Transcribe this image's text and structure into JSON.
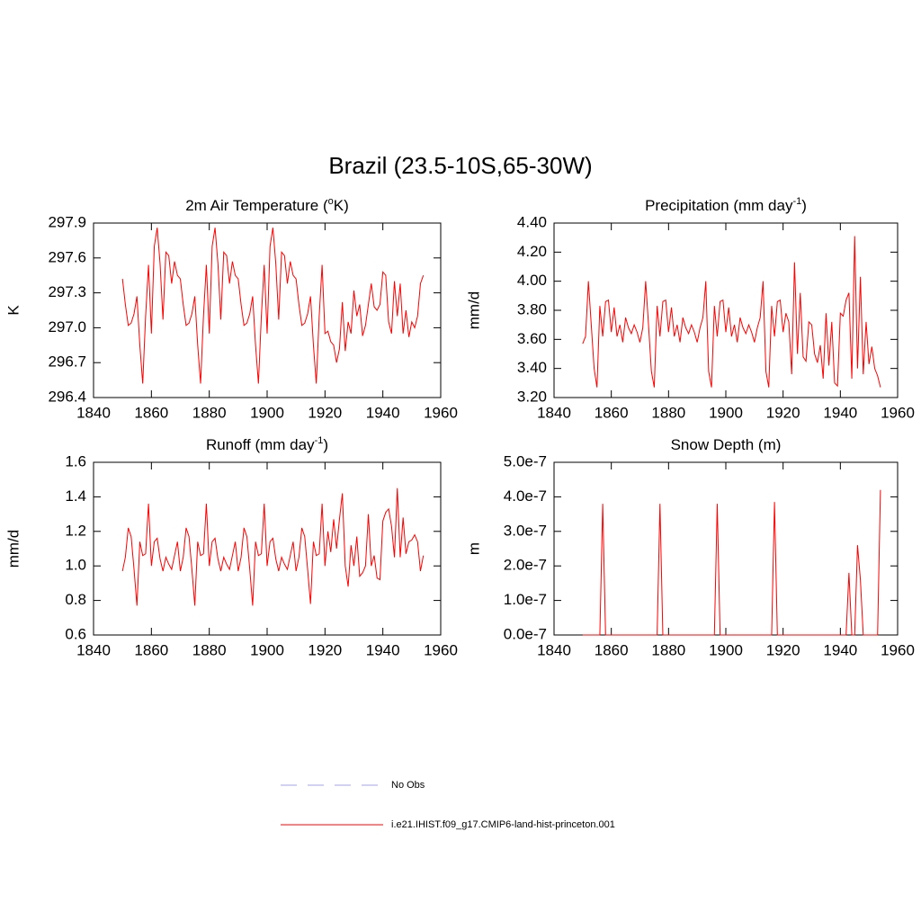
{
  "title": "Brazil (23.5-10S,65-30W)",
  "legend": [
    {
      "label": "No Obs",
      "color": "#a0a0f0",
      "dash": true
    },
    {
      "label": "i.e21.IHIST.f09_g17.CMIP6-land-hist-princeton.001",
      "color": "#ff0000",
      "dash": false
    }
  ],
  "chart_data": [
    {
      "type": "line",
      "title": "2m Air Temperature (",
      "title_sup": "o",
      "title_end": "K)",
      "ylabel": "K",
      "xlim": [
        1840,
        1960
      ],
      "xticks": [
        1840,
        1860,
        1880,
        1900,
        1920,
        1940,
        1960
      ],
      "ylim": [
        296.4,
        297.9
      ],
      "yticks": [
        296.4,
        296.7,
        {
          "value": 297,
          "label": "297.0"
        },
        297.3,
        297.6,
        297.9
      ],
      "x": [
        1850,
        1851,
        1852,
        1853,
        1854,
        1855,
        1856,
        1857,
        1858,
        1859,
        1860,
        1861,
        1862,
        1863,
        1864,
        1865,
        1866,
        1867,
        1868,
        1869,
        1870,
        1871,
        1872,
        1873,
        1874,
        1875,
        1876,
        1877,
        1878,
        1879,
        1880,
        1881,
        1882,
        1883,
        1884,
        1885,
        1886,
        1887,
        1888,
        1889,
        1890,
        1891,
        1892,
        1893,
        1894,
        1895,
        1896,
        1897,
        1898,
        1899,
        1900,
        1901,
        1902,
        1903,
        1904,
        1905,
        1906,
        1907,
        1908,
        1909,
        1910,
        1911,
        1912,
        1913,
        1914,
        1915,
        1916,
        1917,
        1918,
        1919,
        1920,
        1921,
        1922,
        1923,
        1924,
        1925,
        1926,
        1927,
        1928,
        1929,
        1930,
        1931,
        1932,
        1933,
        1934,
        1935,
        1936,
        1937,
        1938,
        1939,
        1940,
        1941,
        1942,
        1943,
        1944,
        1945,
        1946,
        1947,
        1948,
        1949,
        1950,
        1951,
        1952,
        1953,
        1954
      ],
      "series": [
        {
          "color": "#ff0000",
          "values": [
            297.42,
            297.2,
            297.02,
            297.04,
            297.12,
            297.27,
            296.85,
            296.52,
            297.1,
            297.54,
            296.95,
            297.7,
            297.86,
            297.55,
            297.07,
            297.65,
            297.62,
            297.38,
            297.57,
            297.45,
            297.42,
            297.2,
            297.02,
            297.04,
            297.12,
            297.27,
            296.85,
            296.52,
            297.1,
            297.54,
            296.95,
            297.7,
            297.86,
            297.55,
            297.07,
            297.65,
            297.62,
            297.38,
            297.57,
            297.45,
            297.42,
            297.2,
            297.02,
            297.04,
            297.12,
            297.27,
            296.85,
            296.52,
            297.1,
            297.54,
            296.95,
            297.7,
            297.86,
            297.55,
            297.07,
            297.65,
            297.62,
            297.38,
            297.57,
            297.45,
            297.42,
            297.2,
            297.02,
            297.04,
            297.12,
            297.27,
            296.85,
            296.52,
            297.1,
            297.54,
            296.95,
            296.97,
            296.88,
            296.85,
            296.7,
            296.82,
            297.22,
            296.8,
            297.05,
            296.95,
            297.32,
            297.1,
            297.2,
            296.93,
            297.02,
            297.2,
            297.38,
            297.18,
            297.15,
            297.2,
            297.48,
            297.45,
            297.05,
            296.95,
            297.4,
            297.1,
            297.38,
            296.95,
            297.15,
            296.92,
            297.05,
            297.0,
            297.1,
            297.38,
            297.45
          ]
        }
      ]
    },
    {
      "type": "line",
      "title": "Precipitation (mm day",
      "title_sup": "-1",
      "title_end": ")",
      "ylabel": "mm/d",
      "xlim": [
        1840,
        1960
      ],
      "xticks": [
        1840,
        1860,
        1880,
        1900,
        1920,
        1940,
        1960
      ],
      "ylim": [
        3.2,
        4.4
      ],
      "yticks": [
        {
          "value": 3.2,
          "label": "3.20"
        },
        {
          "value": 3.4,
          "label": "3.40"
        },
        {
          "value": 3.6,
          "label": "3.60"
        },
        {
          "value": 3.8,
          "label": "3.80"
        },
        {
          "value": 4,
          "label": "4.00"
        },
        {
          "value": 4.2,
          "label": "4.20"
        },
        {
          "value": 4.4,
          "label": "4.40"
        }
      ],
      "x": [
        1850,
        1851,
        1852,
        1853,
        1854,
        1855,
        1856,
        1857,
        1858,
        1859,
        1860,
        1861,
        1862,
        1863,
        1864,
        1865,
        1866,
        1867,
        1868,
        1869,
        1870,
        1871,
        1872,
        1873,
        1874,
        1875,
        1876,
        1877,
        1878,
        1879,
        1880,
        1881,
        1882,
        1883,
        1884,
        1885,
        1886,
        1887,
        1888,
        1889,
        1890,
        1891,
        1892,
        1893,
        1894,
        1895,
        1896,
        1897,
        1898,
        1899,
        1900,
        1901,
        1902,
        1903,
        1904,
        1905,
        1906,
        1907,
        1908,
        1909,
        1910,
        1911,
        1912,
        1913,
        1914,
        1915,
        1916,
        1917,
        1918,
        1919,
        1920,
        1921,
        1922,
        1923,
        1924,
        1925,
        1926,
        1927,
        1928,
        1929,
        1930,
        1931,
        1932,
        1933,
        1934,
        1935,
        1936,
        1937,
        1938,
        1939,
        1940,
        1941,
        1942,
        1943,
        1944,
        1945,
        1946,
        1947,
        1948,
        1949,
        1950,
        1951,
        1952,
        1953,
        1954
      ],
      "series": [
        {
          "color": "#ff0000",
          "values": [
            3.57,
            3.62,
            4.0,
            3.7,
            3.4,
            3.27,
            3.83,
            3.62,
            3.86,
            3.87,
            3.65,
            3.82,
            3.62,
            3.7,
            3.58,
            3.75,
            3.68,
            3.64,
            3.7,
            3.65,
            3.58,
            3.68,
            4.0,
            3.7,
            3.38,
            3.27,
            3.83,
            3.62,
            3.86,
            3.87,
            3.65,
            3.82,
            3.62,
            3.7,
            3.58,
            3.75,
            3.68,
            3.64,
            3.7,
            3.65,
            3.58,
            3.68,
            3.75,
            4.0,
            3.38,
            3.27,
            3.83,
            3.62,
            3.86,
            3.87,
            3.65,
            3.82,
            3.62,
            3.7,
            3.58,
            3.75,
            3.68,
            3.64,
            3.7,
            3.65,
            3.58,
            3.68,
            3.75,
            4.0,
            3.38,
            3.27,
            3.83,
            3.62,
            3.86,
            3.87,
            3.65,
            3.78,
            3.72,
            3.36,
            4.13,
            3.5,
            3.92,
            3.48,
            3.45,
            3.72,
            3.7,
            3.5,
            3.44,
            3.56,
            3.33,
            3.78,
            3.42,
            3.72,
            3.3,
            3.28,
            3.78,
            3.76,
            3.87,
            3.92,
            3.33,
            4.31,
            3.4,
            4.03,
            3.36,
            3.72,
            3.43,
            3.55,
            3.4,
            3.35,
            3.27
          ]
        }
      ]
    },
    {
      "type": "line",
      "title": "Runoff (mm day",
      "title_sup": "-1",
      "title_end": ")",
      "ylabel": "mm/d",
      "xlim": [
        1840,
        1960
      ],
      "xticks": [
        1840,
        1860,
        1880,
        1900,
        1920,
        1940,
        1960
      ],
      "ylim": [
        0.6,
        1.6
      ],
      "yticks": [
        0.6,
        0.8,
        {
          "value": 1,
          "label": "1.0"
        },
        1.2,
        1.4,
        1.6
      ],
      "x": [
        1850,
        1851,
        1852,
        1853,
        1854,
        1855,
        1856,
        1857,
        1858,
        1859,
        1860,
        1861,
        1862,
        1863,
        1864,
        1865,
        1866,
        1867,
        1868,
        1869,
        1870,
        1871,
        1872,
        1873,
        1874,
        1875,
        1876,
        1877,
        1878,
        1879,
        1880,
        1881,
        1882,
        1883,
        1884,
        1885,
        1886,
        1887,
        1888,
        1889,
        1890,
        1891,
        1892,
        1893,
        1894,
        1895,
        1896,
        1897,
        1898,
        1899,
        1900,
        1901,
        1902,
        1903,
        1904,
        1905,
        1906,
        1907,
        1908,
        1909,
        1910,
        1911,
        1912,
        1913,
        1914,
        1915,
        1916,
        1917,
        1918,
        1919,
        1920,
        1921,
        1922,
        1923,
        1924,
        1925,
        1926,
        1927,
        1928,
        1929,
        1930,
        1931,
        1932,
        1933,
        1934,
        1935,
        1936,
        1937,
        1938,
        1939,
        1940,
        1941,
        1942,
        1943,
        1944,
        1945,
        1946,
        1947,
        1948,
        1949,
        1950,
        1951,
        1952,
        1953,
        1954
      ],
      "series": [
        {
          "color": "#ff0000",
          "values": [
            0.97,
            1.05,
            1.22,
            1.17,
            0.98,
            0.77,
            1.14,
            1.06,
            1.07,
            1.36,
            1.0,
            1.14,
            1.16,
            1.04,
            0.97,
            1.05,
            1.01,
            0.98,
            1.06,
            1.14,
            0.97,
            1.05,
            1.22,
            1.17,
            0.98,
            0.77,
            1.14,
            1.06,
            1.07,
            1.36,
            1.0,
            1.14,
            1.16,
            1.04,
            0.97,
            1.05,
            1.01,
            0.98,
            1.06,
            1.14,
            0.97,
            1.05,
            1.22,
            1.17,
            0.98,
            0.77,
            1.14,
            1.06,
            1.07,
            1.36,
            1.0,
            1.14,
            1.16,
            1.04,
            0.97,
            1.05,
            1.01,
            0.98,
            1.06,
            1.14,
            0.97,
            1.05,
            1.22,
            1.17,
            0.98,
            0.78,
            1.14,
            1.06,
            1.07,
            1.36,
            1.0,
            1.2,
            1.08,
            1.27,
            1.1,
            1.27,
            1.42,
            1.0,
            0.88,
            1.12,
            1.0,
            1.17,
            0.94,
            0.96,
            1.0,
            1.3,
            1.0,
            1.06,
            0.93,
            0.92,
            1.26,
            1.31,
            1.33,
            1.23,
            1.05,
            1.45,
            1.05,
            1.28,
            1.07,
            1.14,
            1.15,
            1.18,
            1.14,
            0.97,
            1.06
          ]
        }
      ]
    },
    {
      "type": "line",
      "title": "Snow Depth (m)",
      "ylabel": "m",
      "xlim": [
        1840,
        1960
      ],
      "xticks": [
        1840,
        1860,
        1880,
        1900,
        1920,
        1940,
        1960
      ],
      "ylim": [
        0,
        5e-07
      ],
      "yticks": [
        {
          "value": 0,
          "label": "0.0e-7"
        },
        {
          "value": 1e-07,
          "label": "1.0e-7"
        },
        {
          "value": 2e-07,
          "label": "2.0e-7"
        },
        {
          "value": 3e-07,
          "label": "3.0e-7"
        },
        {
          "value": 4e-07,
          "label": "4.0e-7"
        },
        {
          "value": 5e-07,
          "label": "5.0e-7"
        }
      ],
      "x": [
        1850,
        1851,
        1852,
        1853,
        1854,
        1855,
        1856,
        1857,
        1858,
        1859,
        1860,
        1861,
        1862,
        1863,
        1864,
        1865,
        1866,
        1867,
        1868,
        1869,
        1870,
        1871,
        1872,
        1873,
        1874,
        1875,
        1876,
        1877,
        1878,
        1879,
        1880,
        1881,
        1882,
        1883,
        1884,
        1885,
        1886,
        1887,
        1888,
        1889,
        1890,
        1891,
        1892,
        1893,
        1894,
        1895,
        1896,
        1897,
        1898,
        1899,
        1900,
        1901,
        1902,
        1903,
        1904,
        1905,
        1906,
        1907,
        1908,
        1909,
        1910,
        1911,
        1912,
        1913,
        1914,
        1915,
        1916,
        1917,
        1918,
        1919,
        1920,
        1921,
        1922,
        1923,
        1924,
        1925,
        1926,
        1927,
        1928,
        1929,
        1930,
        1931,
        1932,
        1933,
        1934,
        1935,
        1936,
        1937,
        1938,
        1939,
        1940,
        1941,
        1942,
        1943,
        1944,
        1945,
        1946,
        1947,
        1948,
        1949,
        1950,
        1951,
        1952,
        1953,
        1954
      ],
      "series": [
        {
          "color": "#ff0000",
          "values": [
            0,
            0,
            0,
            0,
            0,
            0,
            0,
            3.8e-07,
            0,
            0,
            0,
            0,
            0,
            0,
            0,
            0,
            0,
            0,
            0,
            0,
            0,
            0,
            0,
            0,
            0,
            0,
            0,
            3.8e-07,
            0,
            0,
            0,
            0,
            0,
            0,
            0,
            0,
            0,
            0,
            0,
            0,
            0,
            0,
            0,
            0,
            0,
            0,
            0,
            3.8e-07,
            0,
            0,
            0,
            0,
            0,
            0,
            0,
            0,
            0,
            0,
            0,
            0,
            0,
            0,
            0,
            0,
            0,
            0,
            0,
            3.85e-07,
            0,
            0,
            0,
            0,
            0,
            0,
            0,
            0,
            0,
            0,
            0,
            0,
            0,
            0,
            0,
            0,
            0,
            0,
            0,
            0,
            0,
            0,
            0,
            0,
            0,
            1.8e-07,
            0,
            0,
            2.6e-07,
            1.6e-07,
            0,
            0,
            0,
            0,
            0,
            0,
            4.2e-07
          ]
        }
      ]
    }
  ]
}
